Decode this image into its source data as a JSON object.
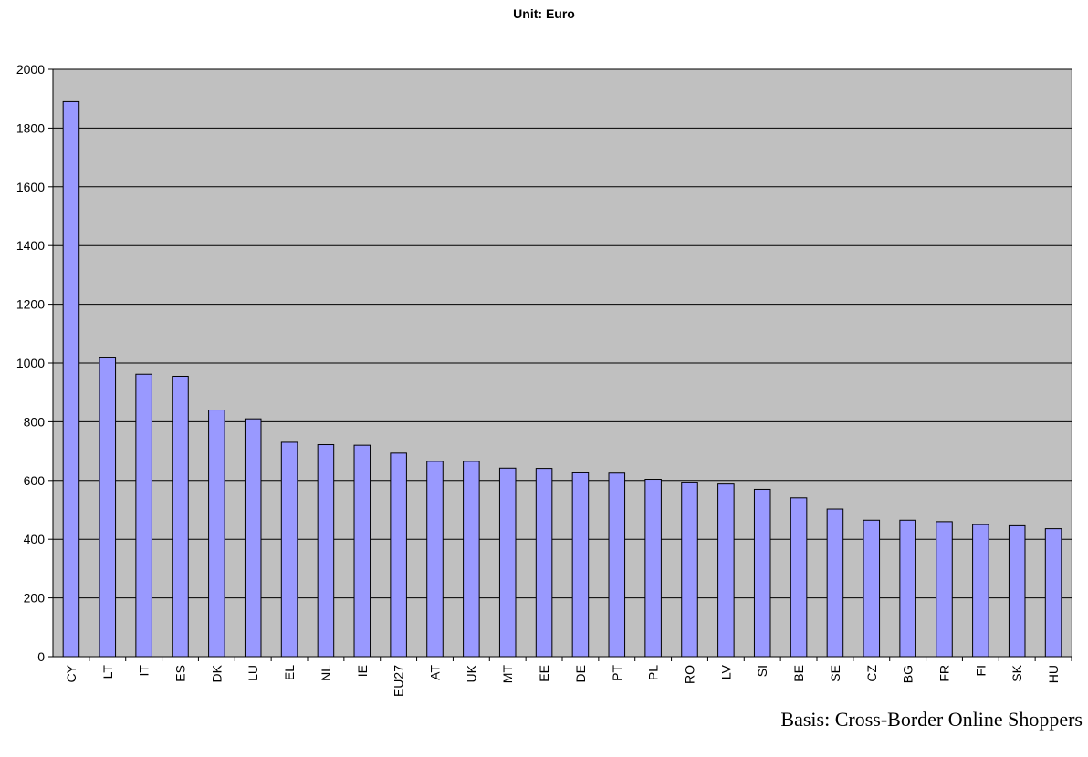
{
  "chart_data": {
    "type": "bar",
    "title": "Unit: Euro",
    "footnote": "Basis: Cross-Border Online Shoppers",
    "categories": [
      "CY",
      "LT",
      "IT",
      "ES",
      "DK",
      "LU",
      "EL",
      "NL",
      "IE",
      "EU27",
      "AT",
      "UK",
      "MT",
      "EE",
      "DE",
      "PT",
      "PL",
      "RO",
      "LV",
      "SI",
      "BE",
      "SE",
      "CZ",
      "BG",
      "FR",
      "FI",
      "SK",
      "HU"
    ],
    "values": [
      1890,
      1020,
      962,
      955,
      840,
      810,
      730,
      722,
      720,
      693,
      665,
      665,
      642,
      641,
      626,
      625,
      604,
      592,
      588,
      570,
      541,
      503,
      465,
      465,
      460,
      450,
      446,
      436
    ],
    "ylim": [
      0,
      2000
    ],
    "yticks": [
      0,
      200,
      400,
      600,
      800,
      1000,
      1200,
      1400,
      1600,
      1800,
      2000
    ],
    "grid": true,
    "colors": {
      "bar_fill": "#9999ff",
      "plot_background": "#c0c0c0",
      "gridline": "#000000"
    }
  }
}
